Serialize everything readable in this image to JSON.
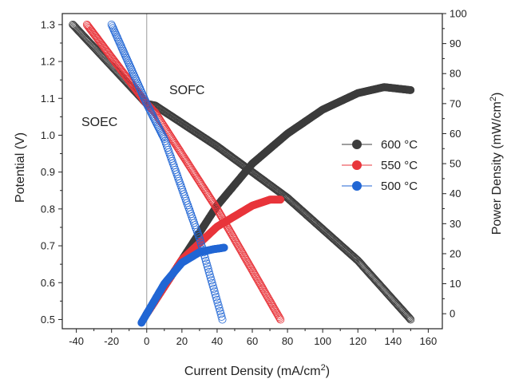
{
  "chart_data": {
    "type": "scatter",
    "xlabel": "Current Density (mA/cm",
    "xlabel_sup": "2",
    "xlabel_end": ")",
    "ylabel_left": "Potential (V)",
    "ylabel_right": "Power Density (mW/cm",
    "ylabel_right_sup": "2",
    "ylabel_right_end": ")",
    "xlim": [
      -48,
      168
    ],
    "ylim_left": [
      0.475,
      1.33
    ],
    "ylim_right": [
      -5,
      100
    ],
    "x_ticks": [
      -40,
      -20,
      0,
      20,
      40,
      60,
      80,
      100,
      120,
      140,
      160
    ],
    "y_left_ticks": [
      0.5,
      0.6,
      0.7,
      0.8,
      0.9,
      1.0,
      1.1,
      1.2,
      1.3
    ],
    "y_left_tick_labels": [
      "0.5",
      "0.6",
      "0.7",
      "0.8",
      "0.9",
      "1.0",
      "1.1",
      "1.2",
      "1.3"
    ],
    "y_right_ticks": [
      0,
      10,
      20,
      30,
      40,
      50,
      60,
      70,
      80,
      90,
      100
    ],
    "annotations": [
      "SOFC",
      "SOEC"
    ],
    "legend_position": "right-center",
    "series": [
      {
        "name": "600 °C",
        "color": "#3c3c3c",
        "iv_curve": [
          [
            -42,
            1.3
          ],
          [
            0,
            1.085
          ],
          [
            5,
            1.08
          ],
          [
            40,
            0.97
          ],
          [
            80,
            0.83
          ],
          [
            120,
            0.66
          ],
          [
            150,
            0.5
          ]
        ],
        "power_curve": [
          [
            0,
            0
          ],
          [
            20,
            18
          ],
          [
            40,
            36
          ],
          [
            60,
            50
          ],
          [
            80,
            60
          ],
          [
            100,
            68
          ],
          [
            120,
            73.5
          ],
          [
            135,
            75.5
          ],
          [
            150,
            74.5
          ]
        ]
      },
      {
        "name": "550 °C",
        "color": "#e8353b",
        "iv_curve": [
          [
            -34,
            1.3
          ],
          [
            0,
            1.085
          ],
          [
            5,
            1.06
          ],
          [
            40,
            0.8
          ],
          [
            76,
            0.5
          ]
        ],
        "power_curve": [
          [
            0,
            0
          ],
          [
            20,
            18
          ],
          [
            40,
            29
          ],
          [
            60,
            36
          ],
          [
            70,
            38
          ],
          [
            76,
            38
          ]
        ]
      },
      {
        "name": "500 °C",
        "color": "#2166d4",
        "iv_curve": [
          [
            -20,
            1.3
          ],
          [
            0,
            1.085
          ],
          [
            10,
            0.99
          ],
          [
            30,
            0.72
          ],
          [
            43,
            0.5
          ]
        ],
        "power_curve": [
          [
            -3,
            -3
          ],
          [
            0,
            0
          ],
          [
            10,
            10
          ],
          [
            20,
            17
          ],
          [
            30,
            20.5
          ],
          [
            38,
            21.5
          ],
          [
            44,
            22
          ]
        ]
      }
    ]
  }
}
